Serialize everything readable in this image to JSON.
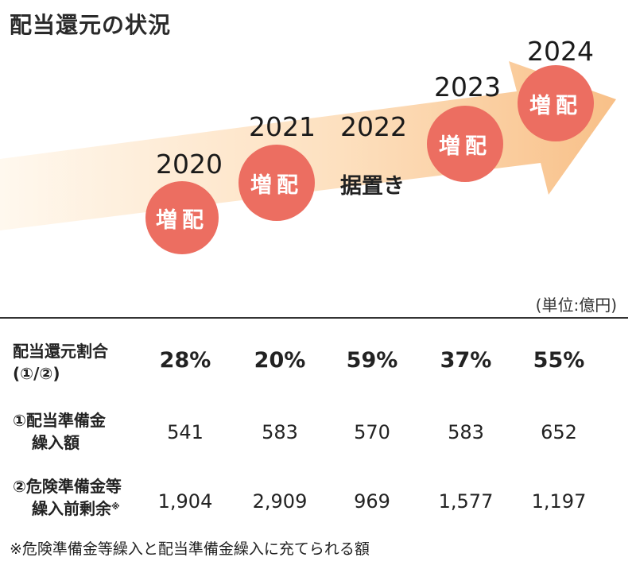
{
  "title": "配当還元の状況",
  "timeline": {
    "years": [
      "2020",
      "2021",
      "2022",
      "2023",
      "2024"
    ],
    "status": [
      "増配",
      "増配",
      "据置き",
      "増配",
      "増配"
    ]
  },
  "unit": "(単位:億円)",
  "table": {
    "rows": [
      {
        "label_line1": "配当還元割合",
        "label_line2": "(①/②)",
        "footnote_mark": "",
        "values": [
          "28%",
          "20%",
          "59%",
          "37%",
          "55%"
        ]
      },
      {
        "label_line1": "①配当準備金",
        "label_line2": "繰入額",
        "footnote_mark": "",
        "values": [
          "541",
          "583",
          "570",
          "583",
          "652"
        ]
      },
      {
        "label_line1": "②危険準備金等",
        "label_line2": "繰入前剰余",
        "footnote_mark": "※",
        "values": [
          "1,904",
          "2,909",
          "969",
          "1,577",
          "1,197"
        ]
      }
    ]
  },
  "footnote": "※危険準備金等繰入と配当準備金繰入に充てられる額",
  "colors": {
    "bubble": "#ec6e61",
    "arrow_light": "#fff6ea",
    "arrow_dark": "#f9c591"
  }
}
